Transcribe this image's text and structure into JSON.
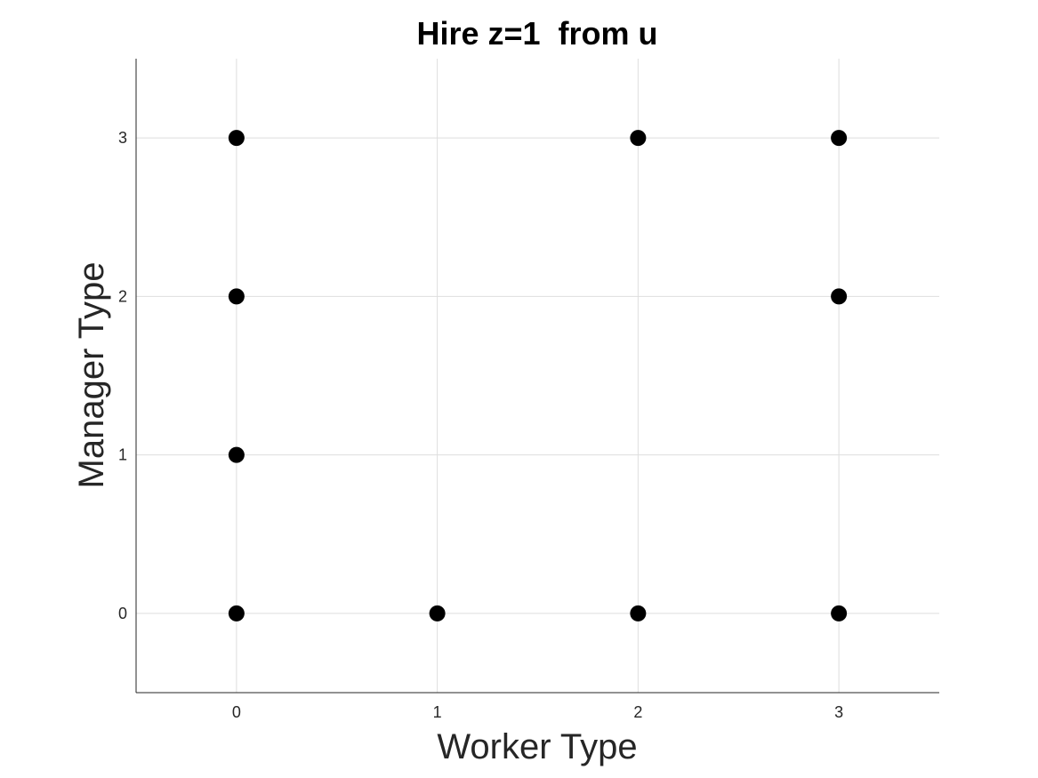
{
  "chart_data": {
    "type": "scatter",
    "title": "Hire z=1  from u",
    "xlabel": "Worker Type",
    "ylabel": "Manager Type",
    "xlim": [
      -0.5,
      3.5
    ],
    "ylim": [
      -0.5,
      3.5
    ],
    "xticks": [
      0,
      1,
      2,
      3
    ],
    "yticks": [
      0,
      1,
      2,
      3
    ],
    "grid": true,
    "marker_color": "#000000",
    "points": [
      {
        "x": 0,
        "y": 3
      },
      {
        "x": 0,
        "y": 2
      },
      {
        "x": 0,
        "y": 1
      },
      {
        "x": 0,
        "y": 0
      },
      {
        "x": 1,
        "y": 0
      },
      {
        "x": 2,
        "y": 3
      },
      {
        "x": 2,
        "y": 0
      },
      {
        "x": 3,
        "y": 3
      },
      {
        "x": 3,
        "y": 2
      },
      {
        "x": 3,
        "y": 0
      }
    ]
  }
}
